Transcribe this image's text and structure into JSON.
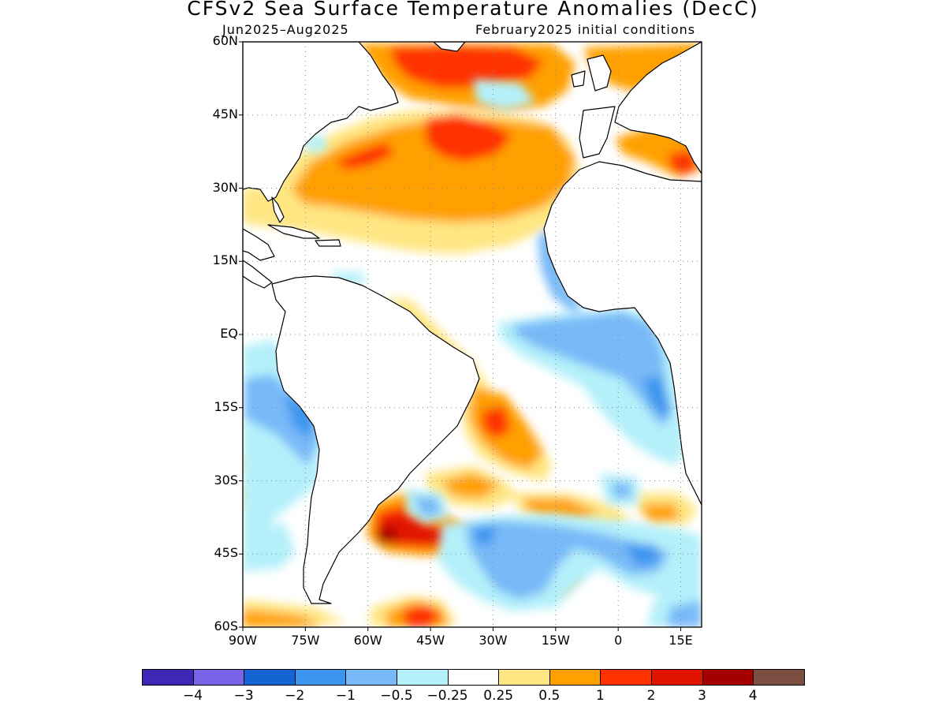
{
  "title": "CFSv2 Sea Surface Temperature Anomalies (DecC)",
  "subtitle_left": "Jun2025–Aug2025",
  "subtitle_right": "February2025 initial conditions",
  "map": {
    "lon_range": [
      -90,
      20
    ],
    "lat_range": [
      -60,
      60
    ],
    "lat_ticks": [
      {
        "value": 60,
        "label": "60N"
      },
      {
        "value": 45,
        "label": "45N"
      },
      {
        "value": 30,
        "label": "30N"
      },
      {
        "value": 15,
        "label": "15N"
      },
      {
        "value": 0,
        "label": "EQ"
      },
      {
        "value": -15,
        "label": "15S"
      },
      {
        "value": -30,
        "label": "30S"
      },
      {
        "value": -45,
        "label": "45S"
      },
      {
        "value": -60,
        "label": "60S"
      }
    ],
    "lon_ticks": [
      {
        "value": -90,
        "label": "90W"
      },
      {
        "value": -75,
        "label": "75W"
      },
      {
        "value": -60,
        "label": "60W"
      },
      {
        "value": -45,
        "label": "45W"
      },
      {
        "value": -30,
        "label": "30W"
      },
      {
        "value": -15,
        "label": "15W"
      },
      {
        "value": 0,
        "label": "0"
      },
      {
        "value": 15,
        "label": "15E"
      }
    ],
    "gridlines": true
  },
  "colorbar": {
    "colors": [
      "#3c28b4",
      "#7864e6",
      "#1464d2",
      "#3c96f0",
      "#78b9f8",
      "#b4f0fa",
      "#ffffff",
      "#ffe682",
      "#ffa000",
      "#ff3200",
      "#e11400",
      "#a50000",
      "#7a4e40"
    ],
    "labels": [
      "−4",
      "−3",
      "−2",
      "−1",
      "−0.5",
      "−0.25",
      "0.25",
      "0.5",
      "1",
      "2",
      "3",
      "4"
    ]
  }
}
